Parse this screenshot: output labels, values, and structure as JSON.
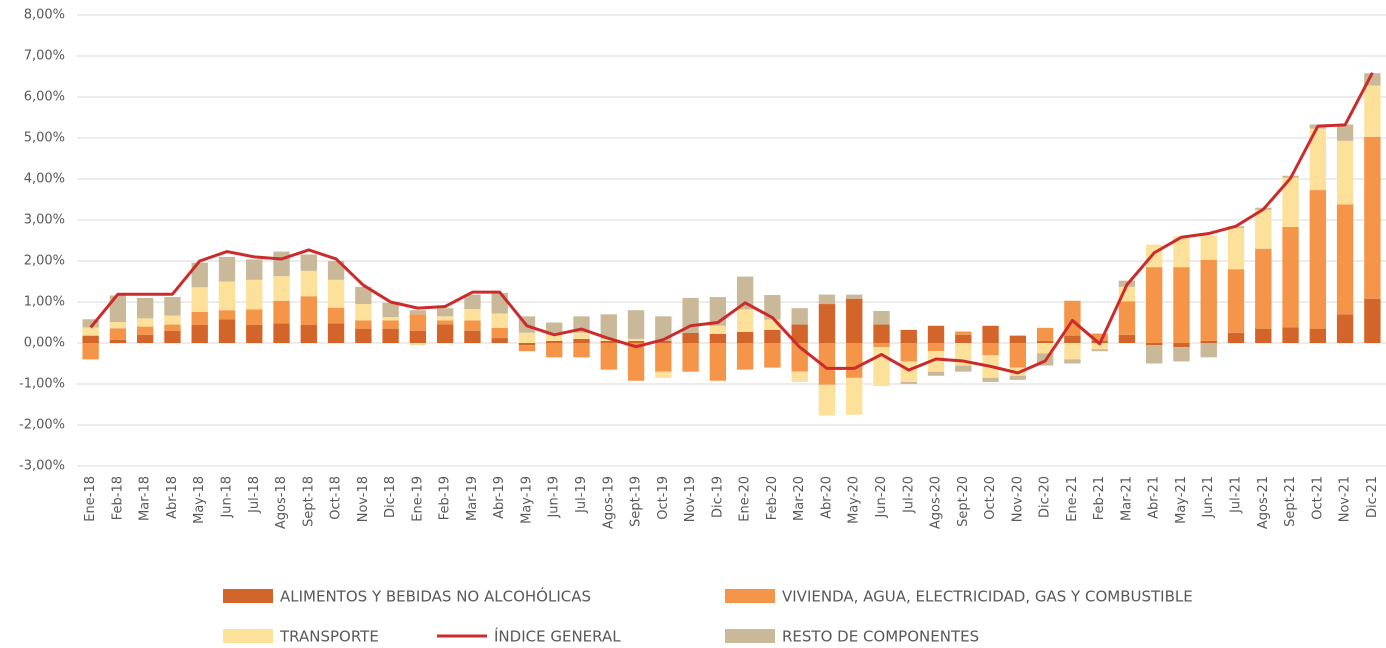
{
  "chart_data": {
    "type": "bar",
    "stacked": true,
    "categories": [
      "Ene-18",
      "Feb-18",
      "Mar-18",
      "Abr-18",
      "May-18",
      "Jun-18",
      "Jul-18",
      "Agos-18",
      "Sept-18",
      "Oct-18",
      "Nov-18",
      "Dic-18",
      "Ene-19",
      "Feb-19",
      "Mar-19",
      "Abr-19",
      "May-19",
      "Jun-19",
      "Jul-19",
      "Agos-19",
      "Sept-19",
      "Oct-19",
      "Nov-19",
      "Dic-19",
      "Ene-20",
      "Feb-20",
      "Mar-20",
      "Abr-20",
      "May-20",
      "Jun-20",
      "Jul-20",
      "Agos-20",
      "Sept-20",
      "Oct-20",
      "Nov-20",
      "Dic-20",
      "Ene-21",
      "Feb-21",
      "Mar-21",
      "Abr-21",
      "May-21",
      "Jun-21",
      "Jul-21",
      "Agos-21",
      "Sept-21",
      "Oct-21",
      "Nov-21",
      "Dic-21"
    ],
    "series": [
      {
        "name": "ALIMENTOS Y BEBIDAS NO ALCOHÓLICAS",
        "color": "#d4652a",
        "type": "bar",
        "values": [
          0.18,
          0.08,
          0.2,
          0.3,
          0.44,
          0.58,
          0.44,
          0.48,
          0.44,
          0.48,
          0.35,
          0.35,
          0.3,
          0.45,
          0.3,
          0.12,
          -0.05,
          0.05,
          0.1,
          0.05,
          0.05,
          0.05,
          0.25,
          0.22,
          0.27,
          0.32,
          0.45,
          0.95,
          1.08,
          0.45,
          0.32,
          0.42,
          0.2,
          0.42,
          0.18,
          0.05,
          0.18,
          0.05,
          0.2,
          -0.05,
          -0.1,
          0.05,
          0.25,
          0.35,
          0.38,
          0.35,
          0.7,
          1.08
        ]
      },
      {
        "name": "VIVIENDA, AGUA, ELECTRICIDAD, GAS Y COMBUSTIBLE",
        "color": "#f4954a",
        "type": "bar",
        "values": [
          -0.4,
          0.28,
          0.2,
          0.15,
          0.32,
          0.22,
          0.38,
          0.55,
          0.7,
          0.38,
          0.2,
          0.2,
          0.4,
          0.1,
          0.25,
          0.25,
          -0.15,
          -0.35,
          -0.35,
          -0.65,
          -0.92,
          -0.7,
          -0.7,
          -0.92,
          -0.65,
          -0.6,
          -0.7,
          -1.02,
          -0.85,
          -0.1,
          -0.45,
          -0.2,
          0.08,
          -0.3,
          -0.6,
          0.32,
          0.85,
          0.18,
          0.82,
          1.85,
          1.85,
          1.98,
          1.55,
          1.95,
          2.45,
          3.38,
          2.68,
          3.95
        ]
      },
      {
        "name": "TRANSPORTE",
        "color": "#fde19a",
        "type": "bar",
        "values": [
          0.2,
          0.15,
          0.2,
          0.22,
          0.6,
          0.7,
          0.72,
          0.6,
          0.62,
          0.68,
          0.4,
          0.08,
          -0.05,
          0.1,
          0.28,
          0.35,
          0.25,
          0.15,
          0.15,
          0.05,
          0.05,
          -0.15,
          0,
          0.2,
          0.55,
          0.25,
          -0.25,
          -0.75,
          -0.9,
          -0.95,
          -0.5,
          -0.5,
          -0.55,
          -0.55,
          -0.2,
          -0.25,
          -0.4,
          -0.15,
          0.35,
          0.55,
          0.75,
          0.6,
          1.0,
          0.95,
          1.2,
          1.5,
          1.55,
          1.25
        ]
      },
      {
        "name": "ÍNDICE GENERAL",
        "color": "#cc2b2b",
        "type": "line",
        "values": [
          0.38,
          1.19,
          1.19,
          1.19,
          2.0,
          2.23,
          2.1,
          2.05,
          2.27,
          2.05,
          1.41,
          1.0,
          0.85,
          0.89,
          1.24,
          1.24,
          0.42,
          0.2,
          0.34,
          0.11,
          -0.09,
          0.08,
          0.42,
          0.5,
          0.98,
          0.62,
          -0.1,
          -0.62,
          -0.62,
          -0.28,
          -0.66,
          -0.39,
          -0.44,
          -0.57,
          -0.73,
          -0.44,
          0.55,
          -0.02,
          1.42,
          2.2,
          2.58,
          2.67,
          2.85,
          3.26,
          4.02,
          5.29,
          5.32,
          6.59
        ]
      },
      {
        "name": "RESTO DE COMPONENTES",
        "color": "#c9b998",
        "type": "bar",
        "values": [
          0.2,
          0.65,
          0.5,
          0.45,
          0.6,
          0.6,
          0.5,
          0.6,
          0.4,
          0.46,
          0.42,
          0.35,
          0.1,
          0.2,
          0.35,
          0.5,
          0.4,
          0.3,
          0.4,
          0.6,
          0.7,
          0.6,
          0.85,
          0.7,
          0.8,
          0.6,
          0.4,
          0.23,
          0.1,
          0.33,
          -0.05,
          -0.1,
          -0.15,
          -0.1,
          -0.1,
          -0.3,
          -0.1,
          -0.05,
          0.15,
          -0.45,
          -0.35,
          -0.35,
          0.05,
          0.05,
          0.05,
          0.1,
          0.4,
          0.3
        ]
      }
    ],
    "ylim": [
      -3,
      8
    ],
    "yticks": [
      {
        "value": -3,
        "label": "-3,00%"
      },
      {
        "value": -2,
        "label": "-2,00%"
      },
      {
        "value": -1,
        "label": "-1,00%"
      },
      {
        "value": 0,
        "label": "0,00%"
      },
      {
        "value": 1,
        "label": "1,00%"
      },
      {
        "value": 2,
        "label": "2,00%"
      },
      {
        "value": 3,
        "label": "3,00%"
      },
      {
        "value": 4,
        "label": "4,00%"
      },
      {
        "value": 5,
        "label": "5,00%"
      },
      {
        "value": 6,
        "label": "6,00%"
      },
      {
        "value": 7,
        "label": "7,00%"
      },
      {
        "value": 8,
        "label": "8,00%"
      }
    ],
    "grid": true,
    "legend": "bottom"
  }
}
